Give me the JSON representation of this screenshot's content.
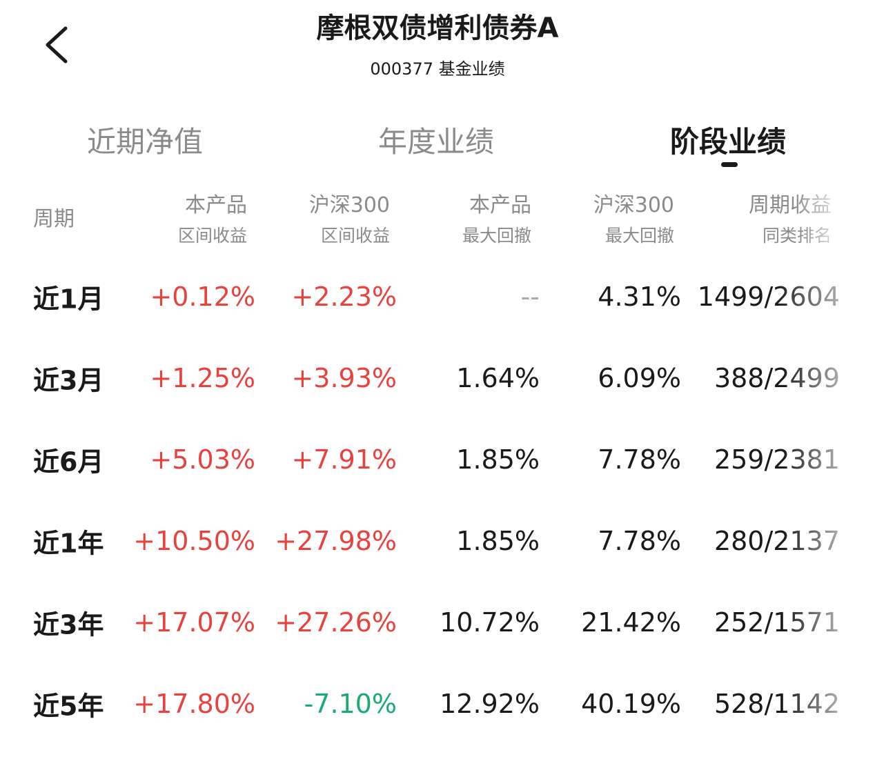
{
  "header": {
    "title": "摩根双债增利债券A",
    "subtitle": "000377 基金业绩"
  },
  "tabs": [
    "近期净值",
    "年度业绩",
    "阶段业绩"
  ],
  "table": {
    "columns": [
      [
        "周期"
      ],
      [
        "本产品",
        "区间收益"
      ],
      [
        "沪深300",
        "区间收益"
      ],
      [
        "本产品",
        "最大回撤"
      ],
      [
        "沪深300",
        "最大回撤"
      ],
      [
        "周期收益",
        "同类排名"
      ]
    ],
    "rows": [
      [
        "近1月",
        "+0.12%",
        "+2.23%",
        "--",
        "4.31%",
        "1499/2604"
      ],
      [
        "近3月",
        "+1.25%",
        "+3.93%",
        "1.64%",
        "6.09%",
        "388/2499"
      ],
      [
        "近6月",
        "+5.03%",
        "+7.91%",
        "1.85%",
        "7.78%",
        "259/2381"
      ],
      [
        "近1年",
        "+10.50%",
        "+27.98%",
        "1.85%",
        "7.78%",
        "280/2137"
      ],
      [
        "近3年",
        "+17.07%",
        "+27.26%",
        "10.72%",
        "21.42%",
        "252/1571"
      ],
      [
        "近5年",
        "+17.80%",
        "-7.10%",
        "12.92%",
        "40.19%",
        "528/1142"
      ]
    ]
  }
}
